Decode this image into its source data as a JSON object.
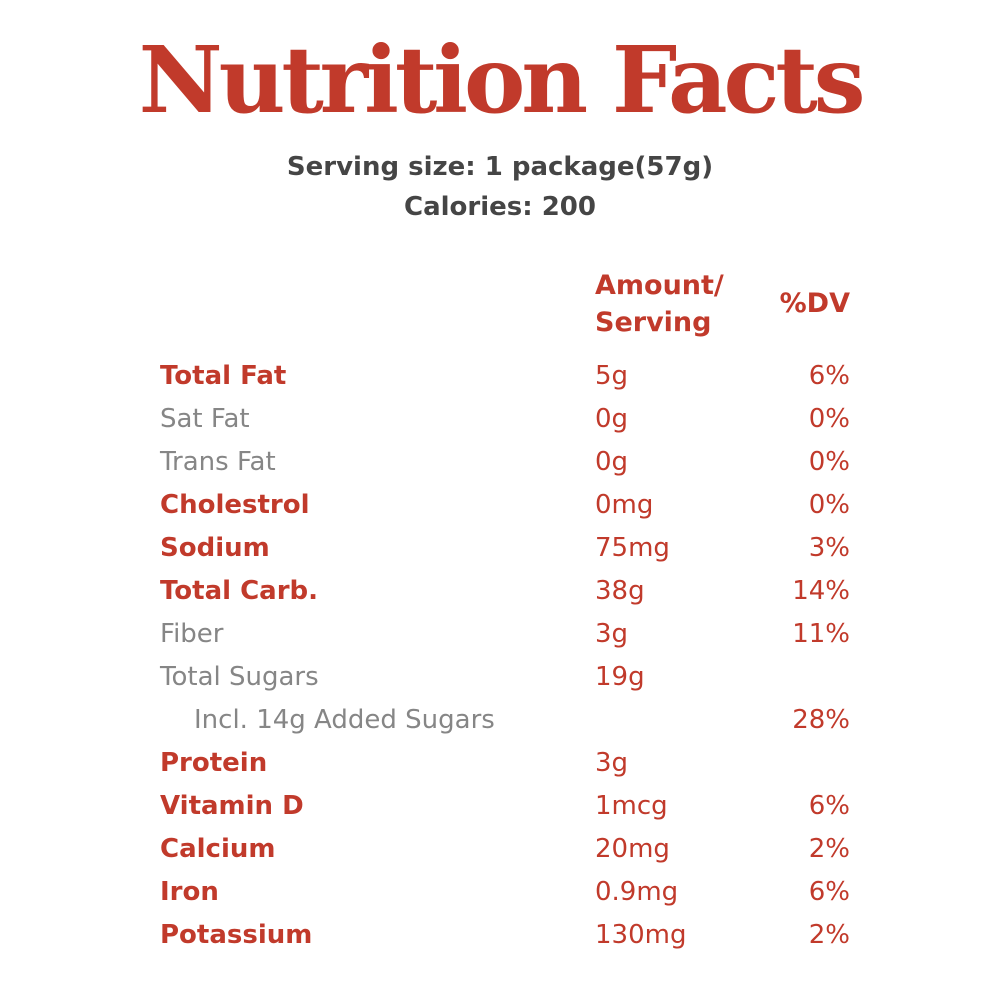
{
  "header": {
    "title": "Nutrition Facts",
    "serving_size": "Serving size: 1 package(57g)",
    "calories": "Calories: 200"
  },
  "colors": {
    "accent_red": "#c13a2b",
    "muted_gray": "#868686",
    "dark_text": "#454545"
  },
  "table": {
    "columns": {
      "amount_header_line1": "Amount/",
      "amount_header_line2": "Serving",
      "dv_header": "%DV"
    },
    "rows": [
      {
        "label": "Total Fat",
        "amount": "5g",
        "dv": "6%",
        "style": "strong",
        "indent": false
      },
      {
        "label": "Sat Fat",
        "amount": "0g",
        "dv": "0%",
        "style": "sub",
        "indent": false
      },
      {
        "label": "Trans Fat",
        "amount": "0g",
        "dv": "0%",
        "style": "sub",
        "indent": false
      },
      {
        "label": "Cholestrol",
        "amount": "0mg",
        "dv": "0%",
        "style": "strong",
        "indent": false
      },
      {
        "label": "Sodium",
        "amount": "75mg",
        "dv": "3%",
        "style": "strong",
        "indent": false
      },
      {
        "label": "Total Carb.",
        "amount": "38g",
        "dv": "14%",
        "style": "strong",
        "indent": false
      },
      {
        "label": "Fiber",
        "amount": "3g",
        "dv": "11%",
        "style": "sub",
        "indent": false
      },
      {
        "label": "Total Sugars",
        "amount": "19g",
        "dv": "",
        "style": "sub",
        "indent": false
      },
      {
        "label": "Incl. 14g Added Sugars",
        "amount": "",
        "dv": "28%",
        "style": "sub",
        "indent": true
      },
      {
        "label": "Protein",
        "amount": "3g",
        "dv": "",
        "style": "strong",
        "indent": false
      },
      {
        "label": "Vitamin D",
        "amount": "1mcg",
        "dv": "6%",
        "style": "strong",
        "indent": false
      },
      {
        "label": "Calcium",
        "amount": "20mg",
        "dv": "2%",
        "style": "strong",
        "indent": false
      },
      {
        "label": "Iron",
        "amount": "0.9mg",
        "dv": "6%",
        "style": "strong",
        "indent": false
      },
      {
        "label": "Potassium",
        "amount": "130mg",
        "dv": "2%",
        "style": "strong",
        "indent": false
      }
    ]
  }
}
